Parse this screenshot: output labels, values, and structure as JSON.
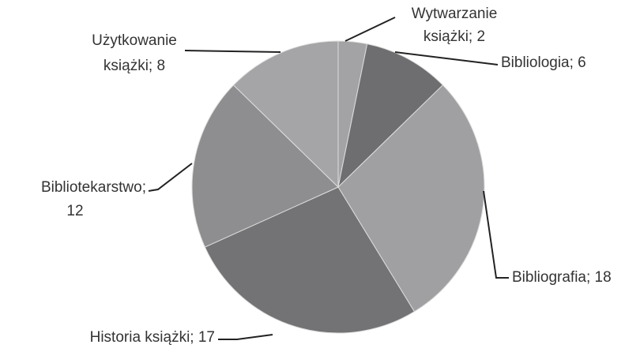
{
  "chart_data": {
    "type": "pie",
    "categories": [
      [
        "Wytwarzanie",
        "książki;  2"
      ],
      [
        "Bibliologia; 6"
      ],
      [
        "Bibliografia; 18"
      ],
      [
        "Historia książki; 17"
      ],
      [
        "Bibliotekarstwo;",
        "12"
      ],
      [
        "Użytkowanie",
        "książki; 8"
      ]
    ],
    "values": [
      2,
      6,
      18,
      17,
      12,
      8
    ],
    "colors": [
      "#a3a3a5",
      "#6e6e70",
      "#a0a0a2",
      "#737375",
      "#8e8e90",
      "#a5a5a7"
    ]
  }
}
